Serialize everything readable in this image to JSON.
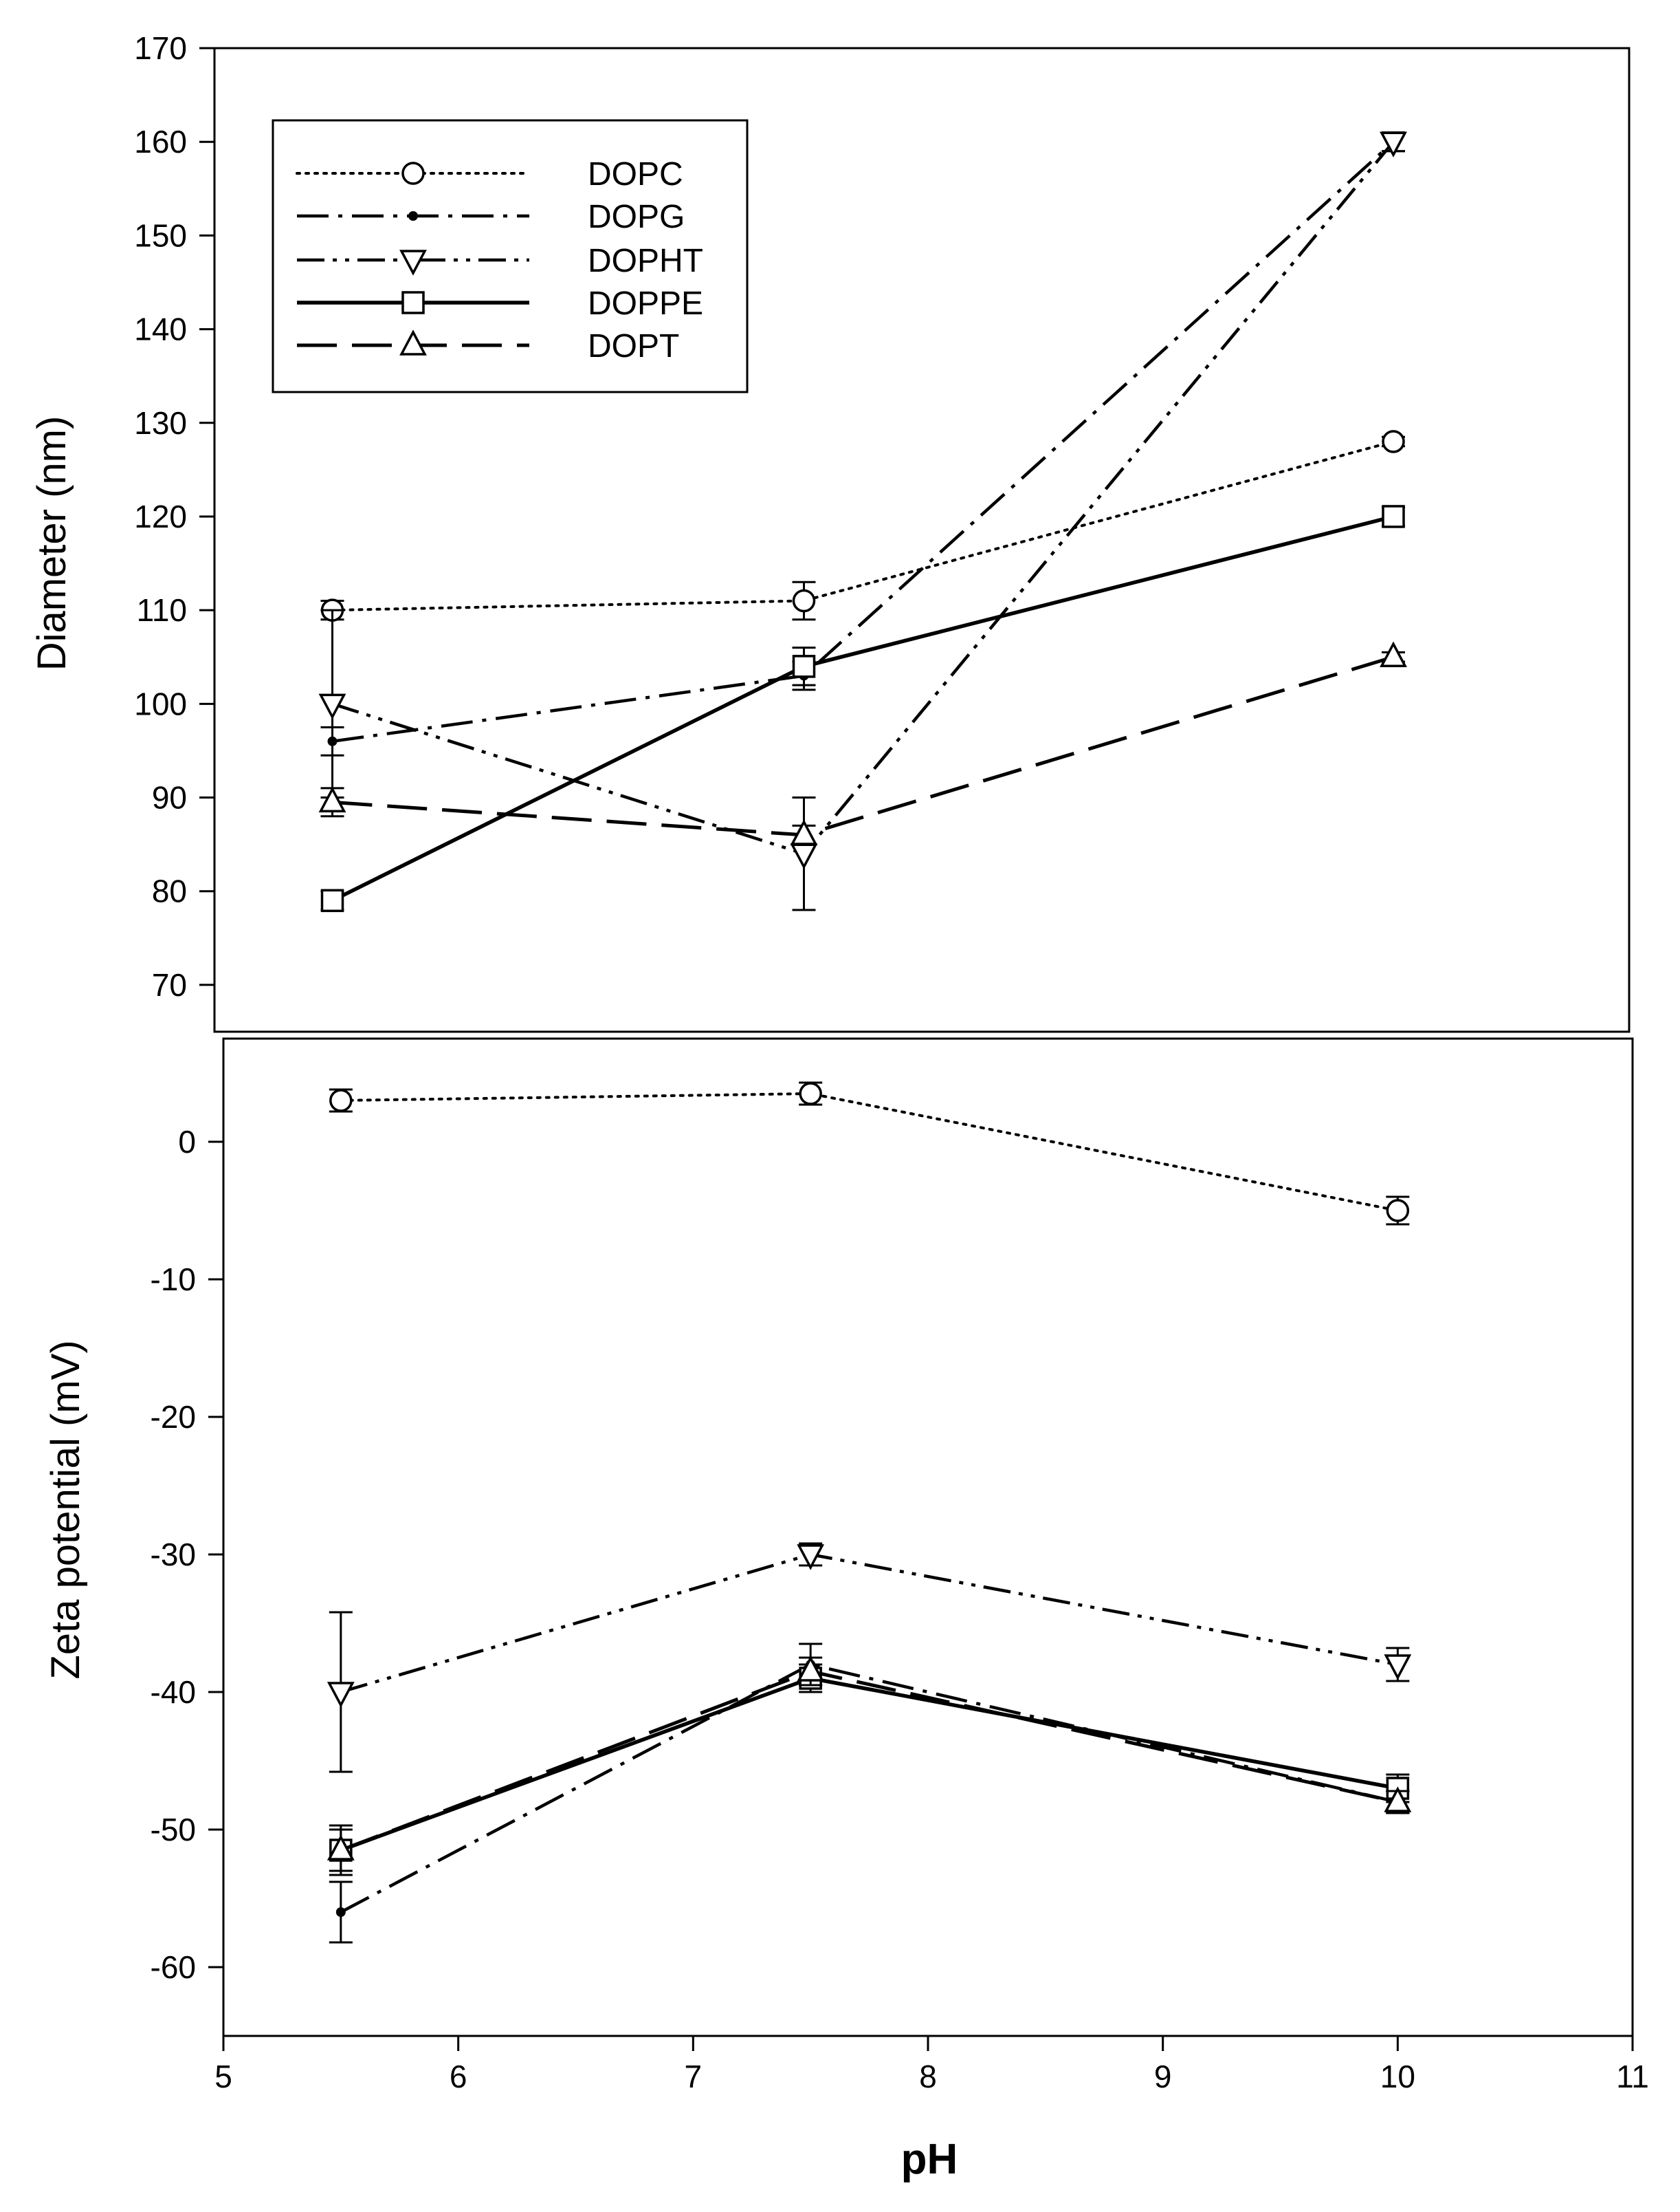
{
  "chart_data": [
    {
      "id": "diameter",
      "type": "line",
      "title": "",
      "xlabel": "pH",
      "ylabel": "Diameter (nm)",
      "xlim": [
        5,
        11
      ],
      "ylim": [
        65,
        170
      ],
      "yticks": [
        70,
        80,
        90,
        100,
        110,
        120,
        130,
        140,
        150,
        160,
        170
      ],
      "legend": {
        "placement": "top-left",
        "entries": [
          "DOPC",
          "DOPG",
          "DOPHT",
          "DOPPE",
          "DOPT"
        ]
      },
      "series": [
        {
          "name": "DOPC",
          "dash": "dotted",
          "marker": "circle",
          "x": [
            5.5,
            7.5,
            10
          ],
          "values": [
            110,
            111,
            128
          ],
          "err": [
            1,
            2,
            0.5
          ]
        },
        {
          "name": "DOPG",
          "dash": "dashdot",
          "marker": "dot",
          "x": [
            5.5,
            7.5,
            10
          ],
          "values": [
            96,
            103,
            160
          ],
          "err": [
            1.5,
            1.5,
            1
          ]
        },
        {
          "name": "DOPHT",
          "dash": "dashdotdot",
          "marker": "triangle-down",
          "x": [
            5.5,
            7.5,
            10
          ],
          "values": [
            100,
            84,
            160
          ],
          "err": [
            10,
            6,
            1
          ]
        },
        {
          "name": "DOPPE",
          "dash": "solid",
          "marker": "square",
          "x": [
            5.5,
            7.5,
            10
          ],
          "values": [
            79,
            104,
            120
          ],
          "err": [
            1,
            2,
            1
          ]
        },
        {
          "name": "DOPT",
          "dash": "longdash",
          "marker": "triangle-up",
          "x": [
            5.5,
            7.5,
            10
          ],
          "values": [
            89.5,
            86,
            105
          ],
          "err": [
            1.5,
            1,
            0.5
          ]
        }
      ]
    },
    {
      "id": "zeta",
      "type": "line",
      "title": "",
      "xlabel": "pH",
      "ylabel": "Zeta potential (mV)",
      "xlim": [
        5,
        11
      ],
      "ylim": [
        -65,
        7.5
      ],
      "xticks": [
        5,
        6,
        7,
        8,
        9,
        10,
        11
      ],
      "yticks": [
        -60,
        -50,
        -40,
        -30,
        -20,
        -10,
        0
      ],
      "series": [
        {
          "name": "DOPC",
          "dash": "dotted",
          "marker": "circle",
          "x": [
            5.5,
            7.5,
            10
          ],
          "values": [
            3,
            3.5,
            -5
          ],
          "err": [
            0.8,
            0.8,
            1
          ]
        },
        {
          "name": "DOPG",
          "dash": "dashdot",
          "marker": "dot",
          "x": [
            5.5,
            7.5,
            10
          ],
          "values": [
            -56,
            -38,
            -48
          ],
          "err": [
            2.2,
            1.5,
            0.8
          ]
        },
        {
          "name": "DOPHT",
          "dash": "dashdotdot",
          "marker": "triangle-down",
          "x": [
            5.5,
            7.5,
            10
          ],
          "values": [
            -40,
            -30,
            -38
          ],
          "err": [
            5.8,
            0.8,
            1.2
          ]
        },
        {
          "name": "DOPPE",
          "dash": "solid",
          "marker": "square",
          "x": [
            5.5,
            7.5,
            10
          ],
          "values": [
            -51.5,
            -39,
            -47
          ],
          "err": [
            1.8,
            1,
            1
          ]
        },
        {
          "name": "DOPT",
          "dash": "longdash",
          "marker": "triangle-up",
          "x": [
            5.5,
            7.5,
            10
          ],
          "values": [
            -51.5,
            -38.5,
            -48
          ],
          "err": [
            1.5,
            1,
            0.8
          ]
        }
      ]
    }
  ]
}
